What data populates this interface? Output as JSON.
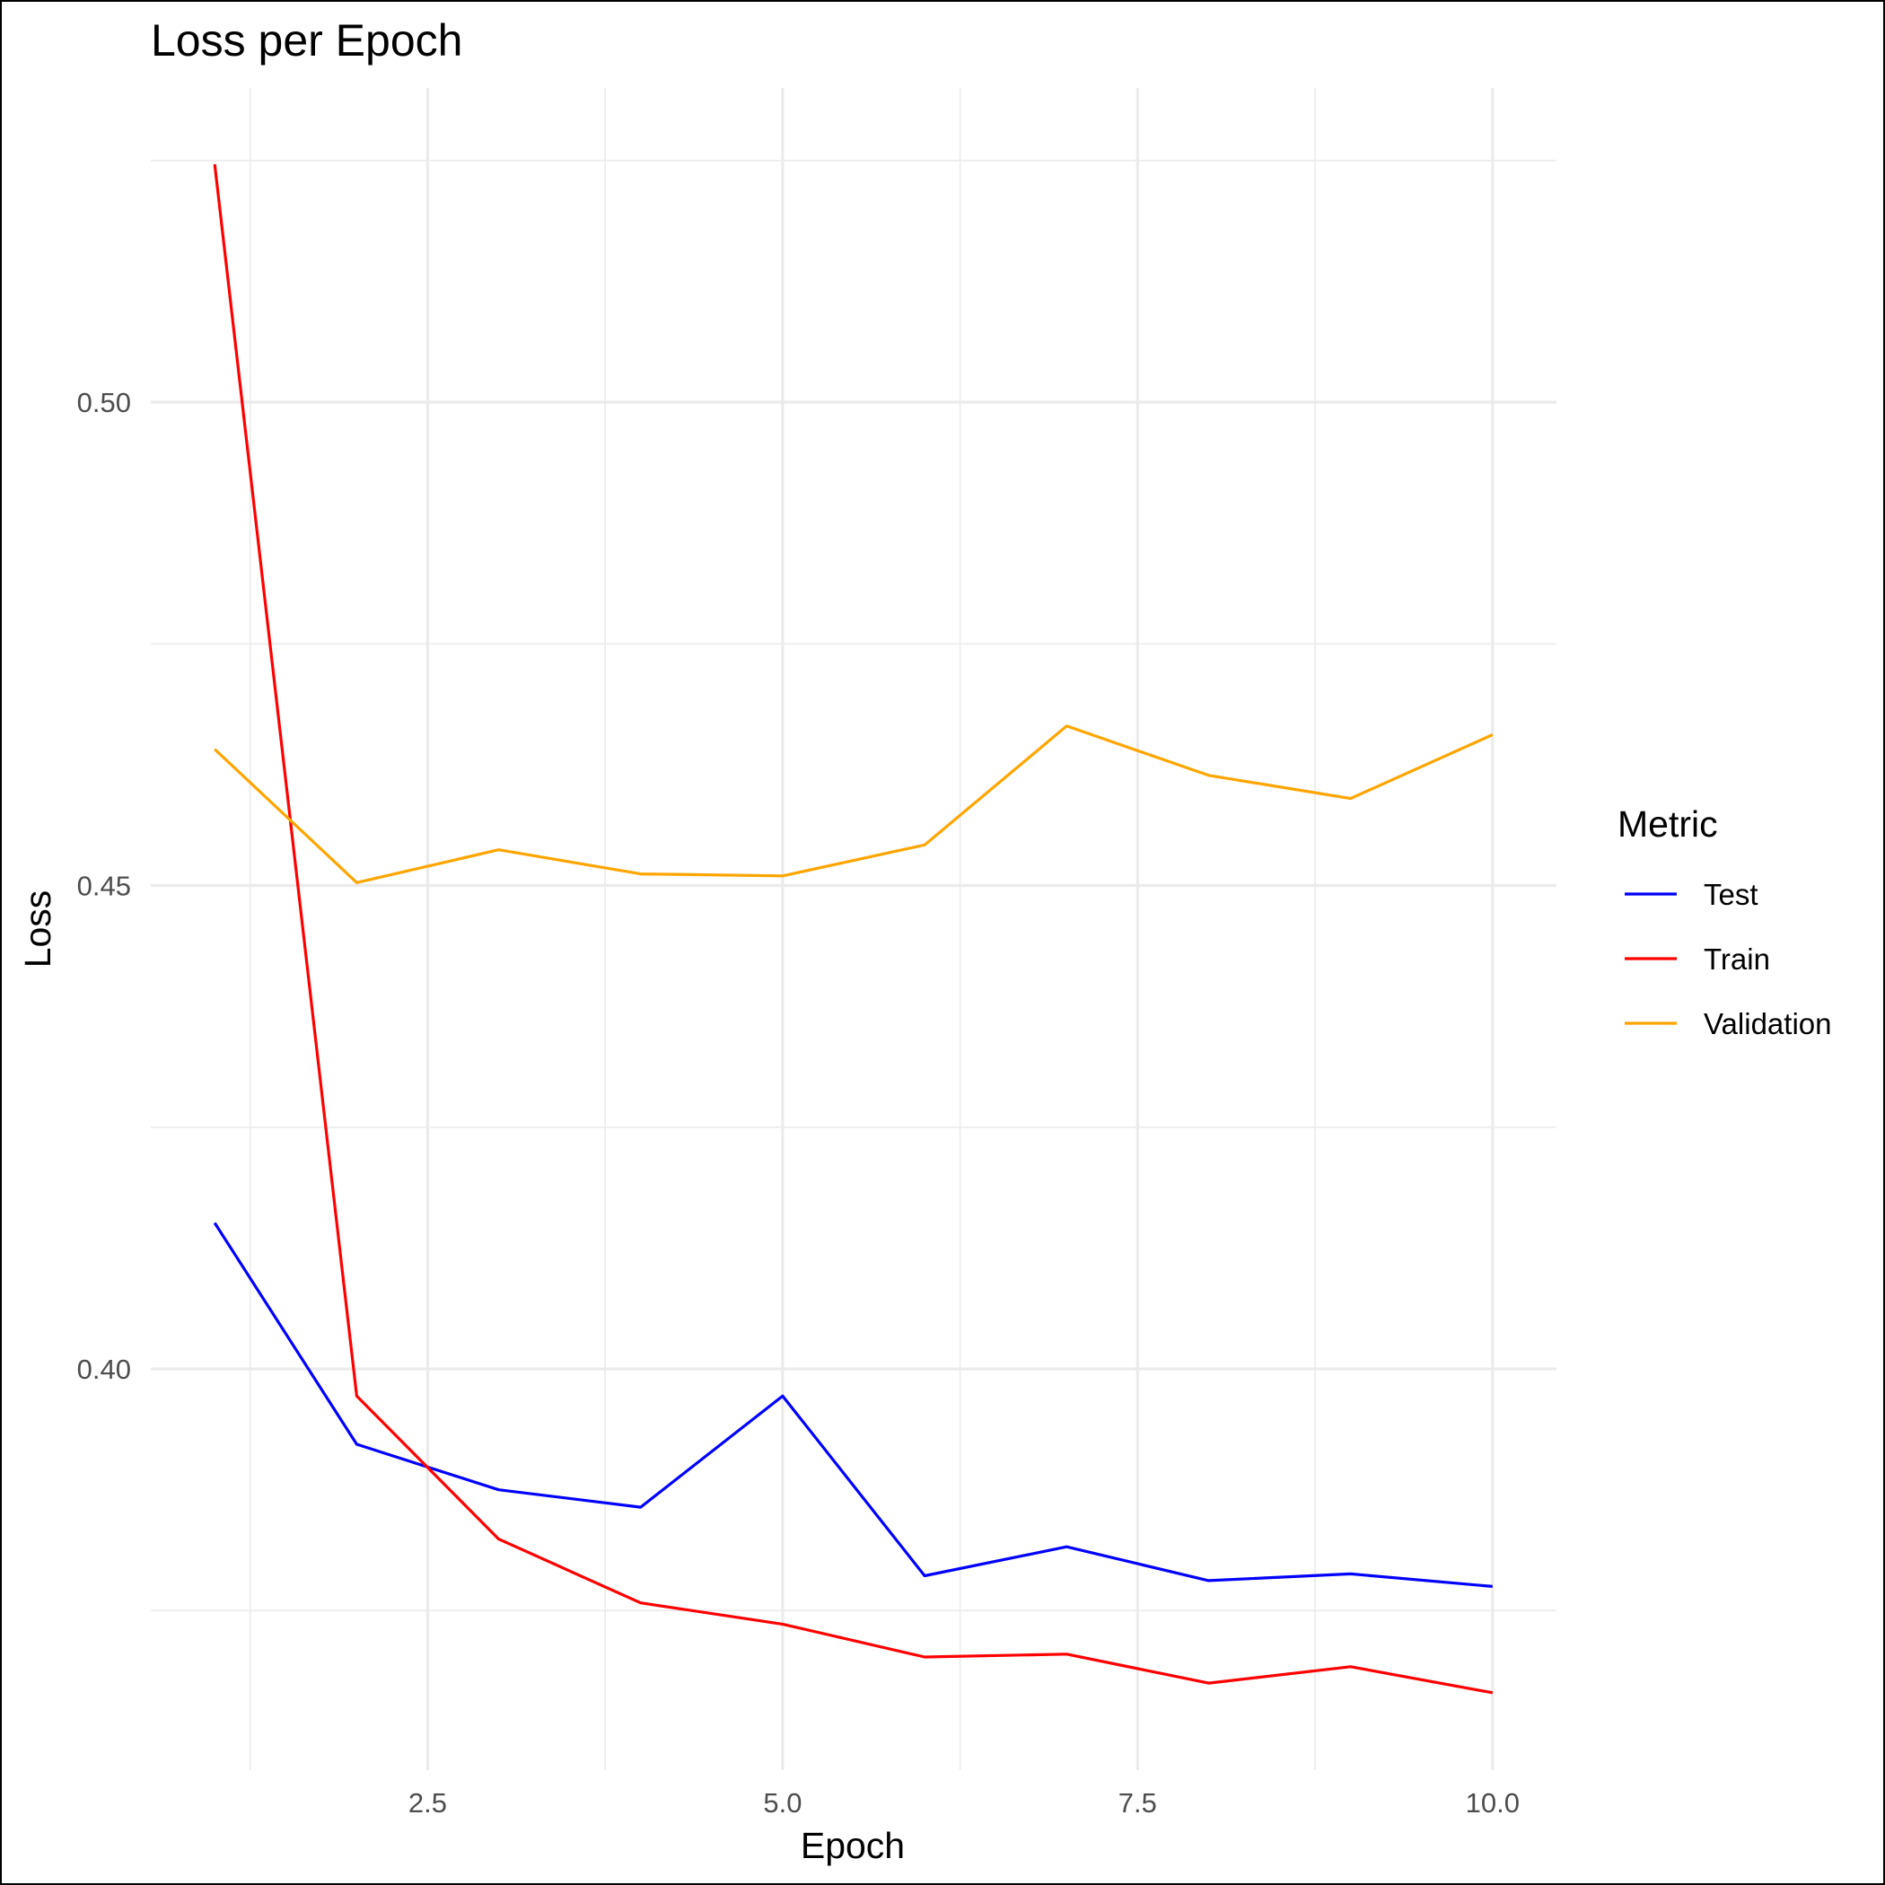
{
  "chart_data": {
    "type": "line",
    "title": "Loss per Epoch",
    "xlabel": "Epoch",
    "ylabel": "Loss",
    "xlim": [
      0.55,
      10.45
    ],
    "ylim": [
      0.3585,
      0.5325
    ],
    "x_ticks": [
      2.5,
      5.0,
      7.5,
      10.0
    ],
    "x_tick_labels": [
      "2.5",
      "5.0",
      "7.5",
      "10.0"
    ],
    "y_ticks": [
      0.4,
      0.45,
      0.5
    ],
    "y_tick_labels": [
      "0.40",
      "0.45",
      "0.50"
    ],
    "x_minor_ticks": [
      1.25,
      3.75,
      6.25,
      8.75
    ],
    "y_minor_ticks": [
      0.375,
      0.425,
      0.475,
      0.525
    ],
    "grid": true,
    "legend": {
      "title": "Metric",
      "position": "right"
    },
    "x": [
      1,
      2,
      3,
      4,
      5,
      6,
      7,
      8,
      9,
      10
    ],
    "series": [
      {
        "name": "Test",
        "color": "#0000ff",
        "values": [
          0.4151,
          0.3922,
          0.3875,
          0.3857,
          0.3972,
          0.3786,
          0.3816,
          0.3781,
          0.3788,
          0.3775
        ]
      },
      {
        "name": "Train",
        "color": "#ff0000",
        "values": [
          0.5246,
          0.3972,
          0.3824,
          0.3758,
          0.3736,
          0.3702,
          0.3705,
          0.3675,
          0.3692,
          0.3665
        ]
      },
      {
        "name": "Validation",
        "color": "#ffa500",
        "values": [
          0.4641,
          0.4503,
          0.4537,
          0.4512,
          0.451,
          0.4542,
          0.4665,
          0.4614,
          0.459,
          0.4656
        ]
      }
    ]
  }
}
